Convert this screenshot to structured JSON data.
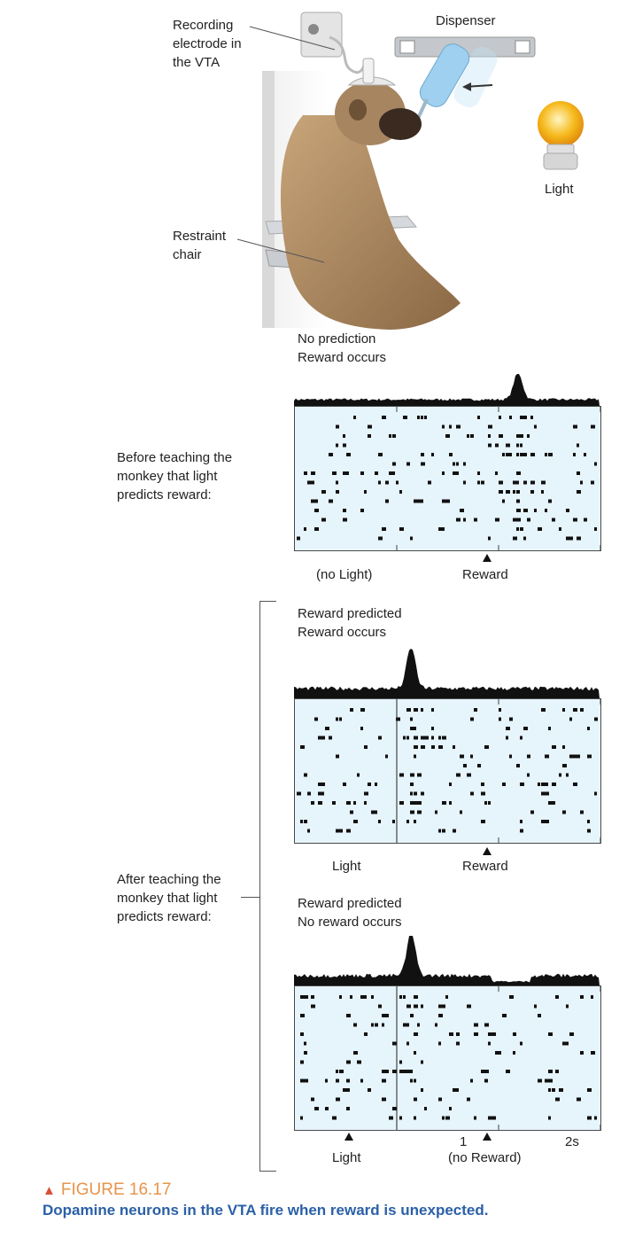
{
  "illustration": {
    "labels": {
      "electrode": "Recording\nelectrode in\nthe VTA",
      "dispenser": "Dispenser",
      "light": "Light",
      "chair": "Restraint\nchair"
    },
    "colors": {
      "fur": "#9b7a55",
      "chair": "#c9ccd0",
      "bottle": "#9fd0f0",
      "bulb": "#f6b91c"
    }
  },
  "panels": [
    {
      "title": "No prediction\nReward occurs",
      "condition": "Before teaching the\nmonkey that light\npredicts reward:",
      "markers": [
        {
          "label": "(no Light)",
          "arrow": false
        },
        {
          "label": "Reward",
          "arrow": true
        }
      ]
    },
    {
      "title": "Reward predicted\nReward occurs",
      "markers": [
        {
          "label": "Light",
          "arrow": false
        },
        {
          "label": "Reward",
          "arrow": true
        }
      ]
    },
    {
      "title": "Reward predicted\nNo reward occurs",
      "markers": [
        {
          "label": "Light",
          "arrow": true
        },
        {
          "label": "(no Reward)",
          "arrow": true
        }
      ],
      "axis_ticks": [
        "1",
        "2s"
      ]
    }
  ],
  "after_condition": "After teaching the\nmonkey that light\npredicts reward:",
  "figure": {
    "number": "FIGURE 16.17",
    "caption": "Dopamine neurons in the VTA fire when reward is unexpected."
  },
  "chart_data": [
    {
      "type": "raster",
      "title": "No prediction Reward occurs",
      "x_unit": "s",
      "xlim": [
        -1,
        2
      ],
      "events": [
        {
          "name": "Reward",
          "t": 1.2
        }
      ],
      "histogram_peaks": [
        {
          "t": 1.2,
          "relative_height": 1.0
        }
      ]
    },
    {
      "type": "raster",
      "title": "Reward predicted Reward occurs",
      "x_unit": "s",
      "xlim": [
        -1,
        2
      ],
      "events": [
        {
          "name": "Light",
          "t": 0
        },
        {
          "name": "Reward",
          "t": 1.2
        }
      ],
      "histogram_peaks": [
        {
          "t": 0.15,
          "relative_height": 1.0
        }
      ]
    },
    {
      "type": "raster",
      "title": "Reward predicted No reward occurs",
      "x_unit": "s",
      "xlim": [
        -1,
        2
      ],
      "events": [
        {
          "name": "Light",
          "t": 0
        },
        {
          "name": "(no Reward)",
          "t": 1.2
        }
      ],
      "histogram_peaks": [
        {
          "t": 0.15,
          "relative_height": 1.0
        }
      ],
      "histogram_dips": [
        {
          "t": 1.2,
          "relative_height": 0.1
        }
      ]
    }
  ]
}
